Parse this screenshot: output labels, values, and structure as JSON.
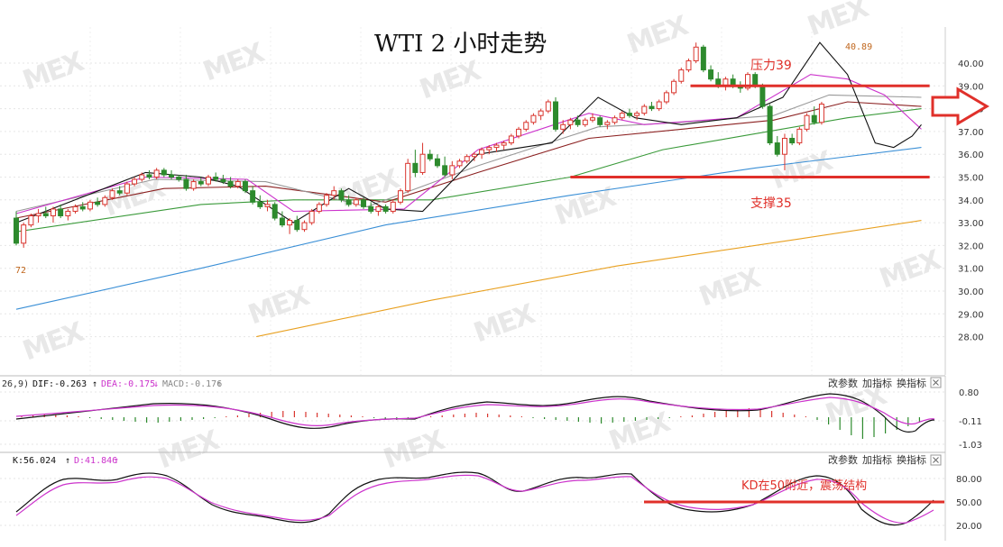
{
  "chart_data": [
    {
      "type": "candlestick",
      "title": "WTI 2 小时走势",
      "ylim": [
        27,
        41.5
      ],
      "yticks": [
        "40.00",
        "39.00",
        "38.00",
        "37.00",
        "36.00",
        "35.00",
        "34.00",
        "33.00",
        "32.00",
        "31.00",
        "30.00",
        "29.00",
        "28.00"
      ],
      "left_label": "72",
      "high_label": "40.89",
      "annotations": [
        {
          "text": "压力39",
          "y": 39
        },
        {
          "text": "支撑35",
          "y": 35
        }
      ],
      "levels": [
        {
          "name": "resistance",
          "y": 39,
          "x_start": 0.73,
          "x_end": 0.985
        },
        {
          "name": "support",
          "y": 35,
          "x_start": 0.6,
          "x_end": 0.985
        }
      ],
      "moving_averages": [
        {
          "color": "#3a8fd6",
          "x": [
            0,
            0.2,
            0.4,
            0.6,
            0.8,
            0.98
          ],
          "y": [
            29.2,
            31.0,
            32.9,
            34.2,
            35.4,
            36.3
          ]
        },
        {
          "color": "#e8a020",
          "x": [
            0.26,
            0.45,
            0.65,
            0.85,
            0.98
          ],
          "y": [
            28.0,
            29.6,
            31.1,
            32.3,
            33.1
          ]
        },
        {
          "color": "#3a9a3a",
          "x": [
            0,
            0.2,
            0.3,
            0.45,
            0.6,
            0.7,
            0.8,
            0.9,
            0.98
          ],
          "y": [
            32.6,
            33.8,
            34.0,
            34.0,
            35.0,
            36.2,
            36.9,
            37.6,
            38.0
          ]
        },
        {
          "color": "#8b2020",
          "x": [
            0,
            0.16,
            0.27,
            0.4,
            0.5,
            0.62,
            0.72,
            0.82,
            0.9,
            0.98
          ],
          "y": [
            33.2,
            34.5,
            34.6,
            33.9,
            35.2,
            36.7,
            37.1,
            37.5,
            38.3,
            38.1
          ]
        },
        {
          "color": "#999999",
          "x": [
            0,
            0.15,
            0.27,
            0.38,
            0.5,
            0.63,
            0.72,
            0.82,
            0.88,
            0.98
          ],
          "y": [
            33.5,
            34.9,
            34.8,
            33.7,
            35.5,
            37.2,
            37.4,
            37.7,
            38.6,
            38.5
          ]
        },
        {
          "color": "#cc33cc",
          "x": [
            0,
            0.14,
            0.25,
            0.3,
            0.42,
            0.5,
            0.62,
            0.68,
            0.78,
            0.86,
            0.9,
            0.94,
            0.98
          ],
          "y": [
            33.4,
            35.0,
            34.9,
            33.5,
            33.6,
            36.2,
            37.8,
            37.3,
            37.6,
            39.5,
            39.3,
            38.6,
            37.1
          ]
        },
        {
          "color": "#111111",
          "x": [
            0,
            0.14,
            0.2,
            0.24,
            0.3,
            0.36,
            0.4,
            0.44,
            0.5,
            0.58,
            0.63,
            0.67,
            0.72,
            0.78,
            0.83,
            0.87,
            0.9,
            0.93,
            0.95,
            0.97,
            0.98
          ],
          "y": [
            33.0,
            35.2,
            35.0,
            34.6,
            33.0,
            34.5,
            33.6,
            33.5,
            36.0,
            36.5,
            38.5,
            37.6,
            37.3,
            37.6,
            38.5,
            40.9,
            39.5,
            36.5,
            36.3,
            36.8,
            37.3
          ]
        }
      ],
      "candles": [
        [
          0.0,
          33.2,
          33.5,
          32.0,
          32.1
        ],
        [
          0.008,
          32.1,
          33.0,
          31.9,
          32.9
        ],
        [
          0.016,
          32.9,
          33.4,
          32.8,
          33.3
        ],
        [
          0.024,
          33.3,
          33.6,
          33.0,
          33.4
        ],
        [
          0.032,
          33.4,
          33.7,
          33.2,
          33.3
        ],
        [
          0.04,
          33.3,
          33.7,
          33.0,
          33.6
        ],
        [
          0.048,
          33.6,
          33.8,
          33.2,
          33.3
        ],
        [
          0.056,
          33.3,
          33.6,
          33.1,
          33.5
        ],
        [
          0.064,
          33.5,
          33.8,
          33.4,
          33.7
        ],
        [
          0.072,
          33.7,
          33.9,
          33.5,
          33.6
        ],
        [
          0.08,
          33.6,
          34.0,
          33.5,
          33.9
        ],
        [
          0.088,
          33.9,
          34.1,
          33.7,
          33.8
        ],
        [
          0.096,
          33.8,
          34.2,
          33.7,
          34.1
        ],
        [
          0.104,
          34.1,
          34.5,
          34.0,
          34.4
        ],
        [
          0.112,
          34.4,
          34.6,
          34.2,
          34.3
        ],
        [
          0.12,
          34.3,
          34.8,
          34.2,
          34.7
        ],
        [
          0.128,
          34.7,
          35.0,
          34.6,
          34.9
        ],
        [
          0.136,
          34.9,
          35.2,
          34.8,
          35.1
        ],
        [
          0.144,
          35.1,
          35.3,
          34.9,
          35.0
        ],
        [
          0.152,
          35.0,
          35.4,
          34.9,
          35.3
        ],
        [
          0.16,
          35.3,
          35.4,
          35.0,
          35.1
        ],
        [
          0.168,
          35.1,
          35.3,
          34.9,
          35.0
        ],
        [
          0.176,
          35.0,
          35.1,
          34.8,
          34.9
        ],
        [
          0.184,
          34.9,
          35.1,
          34.4,
          34.5
        ],
        [
          0.192,
          34.5,
          34.9,
          34.4,
          34.8
        ],
        [
          0.2,
          34.8,
          35.0,
          34.6,
          34.7
        ],
        [
          0.208,
          34.7,
          35.1,
          34.6,
          35.0
        ],
        [
          0.216,
          35.0,
          35.2,
          34.8,
          34.9
        ],
        [
          0.224,
          34.9,
          35.1,
          34.7,
          34.8
        ],
        [
          0.232,
          34.8,
          35.0,
          34.5,
          34.6
        ],
        [
          0.24,
          34.6,
          34.9,
          34.5,
          34.8
        ],
        [
          0.248,
          34.8,
          34.9,
          34.3,
          34.4
        ],
        [
          0.256,
          34.4,
          34.6,
          33.8,
          33.9
        ],
        [
          0.264,
          33.9,
          34.2,
          33.6,
          33.7
        ],
        [
          0.272,
          33.7,
          34.0,
          33.5,
          33.8
        ],
        [
          0.28,
          33.8,
          33.9,
          33.1,
          33.2
        ],
        [
          0.288,
          33.2,
          33.5,
          32.8,
          32.9
        ],
        [
          0.296,
          32.9,
          33.2,
          32.5,
          33.1
        ],
        [
          0.304,
          33.1,
          33.3,
          32.6,
          32.7
        ],
        [
          0.312,
          32.7,
          33.1,
          32.6,
          33.0
        ],
        [
          0.32,
          33.0,
          33.6,
          32.9,
          33.5
        ],
        [
          0.328,
          33.5,
          33.9,
          33.4,
          33.8
        ],
        [
          0.336,
          33.8,
          34.3,
          33.7,
          34.2
        ],
        [
          0.344,
          34.2,
          34.6,
          34.0,
          34.4
        ],
        [
          0.352,
          34.4,
          34.5,
          33.9,
          34.0
        ],
        [
          0.36,
          34.0,
          34.2,
          33.7,
          33.8
        ],
        [
          0.368,
          33.8,
          34.1,
          33.7,
          34.0
        ],
        [
          0.376,
          34.0,
          34.1,
          33.6,
          33.7
        ],
        [
          0.384,
          33.7,
          33.9,
          33.4,
          33.5
        ],
        [
          0.392,
          33.5,
          33.8,
          33.3,
          33.7
        ],
        [
          0.4,
          33.7,
          33.8,
          33.4,
          33.5
        ],
        [
          0.408,
          33.5,
          34.0,
          33.4,
          33.9
        ],
        [
          0.416,
          33.9,
          34.5,
          33.8,
          34.4
        ],
        [
          0.424,
          34.4,
          35.8,
          34.3,
          35.6
        ],
        [
          0.432,
          35.6,
          36.2,
          35.0,
          35.2
        ],
        [
          0.44,
          35.2,
          36.5,
          35.1,
          36.0
        ],
        [
          0.448,
          36.0,
          36.2,
          35.7,
          35.8
        ],
        [
          0.456,
          35.8,
          36.0,
          35.4,
          35.5
        ],
        [
          0.464,
          35.5,
          35.9,
          35.0,
          35.1
        ],
        [
          0.472,
          35.1,
          35.7,
          34.9,
          35.5
        ],
        [
          0.48,
          35.5,
          35.8,
          35.4,
          35.7
        ],
        [
          0.488,
          35.7,
          36.0,
          35.6,
          35.9
        ],
        [
          0.496,
          35.9,
          36.1,
          35.7,
          36.0
        ],
        [
          0.504,
          36.0,
          36.3,
          35.8,
          36.2
        ],
        [
          0.512,
          36.2,
          36.4,
          36.0,
          36.3
        ],
        [
          0.52,
          36.3,
          36.5,
          36.1,
          36.4
        ],
        [
          0.528,
          36.4,
          36.6,
          36.2,
          36.5
        ],
        [
          0.536,
          36.5,
          36.9,
          36.4,
          36.8
        ],
        [
          0.544,
          36.8,
          37.2,
          36.7,
          37.1
        ],
        [
          0.552,
          37.1,
          37.5,
          37.0,
          37.4
        ],
        [
          0.56,
          37.4,
          37.8,
          37.3,
          37.7
        ],
        [
          0.568,
          37.7,
          38.0,
          37.5,
          37.9
        ],
        [
          0.576,
          37.9,
          38.4,
          37.8,
          38.3
        ],
        [
          0.584,
          38.3,
          38.5,
          37.0,
          37.1
        ],
        [
          0.592,
          37.1,
          37.5,
          36.9,
          37.3
        ],
        [
          0.6,
          37.3,
          37.6,
          37.1,
          37.5
        ],
        [
          0.608,
          37.5,
          37.7,
          37.2,
          37.3
        ],
        [
          0.616,
          37.3,
          37.6,
          37.2,
          37.5
        ],
        [
          0.624,
          37.5,
          37.8,
          37.4,
          37.6
        ],
        [
          0.632,
          37.6,
          37.7,
          37.2,
          37.3
        ],
        [
          0.64,
          37.3,
          37.5,
          37.1,
          37.4
        ],
        [
          0.648,
          37.4,
          37.7,
          37.3,
          37.6
        ],
        [
          0.656,
          37.6,
          37.9,
          37.5,
          37.8
        ],
        [
          0.664,
          37.8,
          38.0,
          37.6,
          37.7
        ],
        [
          0.672,
          37.7,
          37.9,
          37.5,
          37.8
        ],
        [
          0.68,
          37.8,
          38.2,
          37.7,
          38.1
        ],
        [
          0.688,
          38.1,
          38.3,
          37.9,
          38.0
        ],
        [
          0.696,
          38.0,
          38.4,
          37.9,
          38.3
        ],
        [
          0.704,
          38.3,
          38.8,
          38.2,
          38.7
        ],
        [
          0.712,
          38.7,
          39.3,
          38.6,
          39.2
        ],
        [
          0.72,
          39.2,
          39.8,
          39.1,
          39.7
        ],
        [
          0.728,
          39.7,
          40.2,
          39.6,
          40.1
        ],
        [
          0.736,
          40.1,
          40.9,
          40.0,
          40.7
        ],
        [
          0.744,
          40.7,
          40.8,
          39.6,
          39.7
        ],
        [
          0.752,
          39.7,
          39.9,
          39.2,
          39.3
        ],
        [
          0.76,
          39.3,
          39.6,
          38.9,
          39.0
        ],
        [
          0.768,
          39.0,
          39.4,
          38.8,
          39.3
        ],
        [
          0.776,
          39.3,
          39.5,
          38.9,
          39.0
        ],
        [
          0.784,
          39.0,
          39.2,
          38.7,
          38.9
        ],
        [
          0.792,
          38.9,
          39.6,
          38.8,
          39.5
        ],
        [
          0.8,
          39.5,
          39.6,
          38.9,
          39.0
        ],
        [
          0.808,
          39.0,
          39.1,
          38.0,
          38.1
        ],
        [
          0.816,
          38.1,
          38.2,
          36.4,
          36.5
        ],
        [
          0.824,
          36.5,
          36.8,
          35.9,
          36.0
        ],
        [
          0.832,
          36.0,
          36.9,
          35.3,
          36.7
        ],
        [
          0.84,
          36.7,
          36.9,
          36.4,
          36.5
        ],
        [
          0.848,
          36.5,
          37.2,
          36.4,
          37.1
        ],
        [
          0.856,
          37.1,
          37.8,
          37.0,
          37.7
        ],
        [
          0.864,
          37.7,
          38.1,
          37.3,
          37.4
        ],
        [
          0.872,
          37.4,
          38.3,
          37.3,
          38.2
        ]
      ]
    },
    {
      "type": "macd",
      "label_left": "26,9)",
      "dif_label": "DIF:-0.263",
      "dea_label": "DEA:-0.175",
      "macd_label": "MACD:-0.176",
      "yticks": [
        "0.80",
        "-0.11",
        "-1.03"
      ],
      "buttons": [
        "改参数",
        "加指标",
        "换指标"
      ]
    },
    {
      "type": "kd",
      "k_label": "K:56.024",
      "d_label": "D:41.846",
      "yticks": [
        "80.00",
        "50.00",
        "20.00"
      ],
      "annotation": "KD在50附近，震荡结构",
      "buttons": [
        "改参数",
        "加指标",
        "换指标"
      ]
    }
  ],
  "watermark": "MEX",
  "colors": {
    "up": "#d9352e",
    "down": "#2d8a2d",
    "level_line": "#e0302a",
    "dif": "#111111",
    "dea": "#cc33cc"
  }
}
